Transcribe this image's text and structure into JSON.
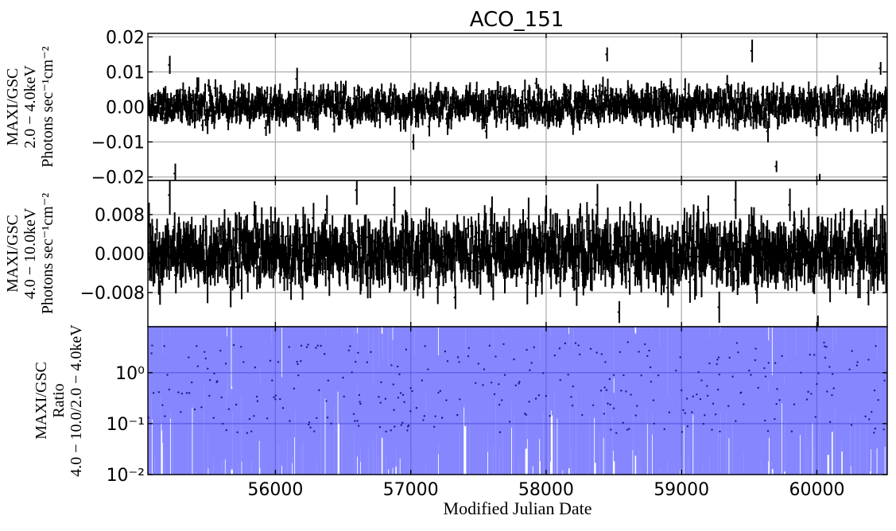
{
  "chart_data": {
    "type": "line",
    "title": "ACO_151",
    "xlabel": "Modified Julian Date",
    "xlim": [
      55058,
      60520
    ],
    "xticks": [
      "56000",
      "57000",
      "58000",
      "59000",
      "60000"
    ],
    "xtick_values": [
      56000,
      57000,
      58000,
      59000,
      60000
    ],
    "grid": true,
    "panels": [
      {
        "id": "soft",
        "ylabel": [
          "MAXI/GSC",
          "2.0 − 4.0keV",
          "Photons sec⁻¹cm⁻²"
        ],
        "ylim": [
          -0.021,
          0.021
        ],
        "scale": "linear",
        "yticks": [
          "0.02",
          "0.01",
          "0.00",
          "−0.01",
          "−0.02"
        ],
        "ytick_values": [
          0.02,
          0.01,
          0.0,
          -0.01,
          -0.02
        ],
        "color": "#000000",
        "series": [
          {
            "x": [
              55070,
              55220,
              55260,
              55600,
              55930,
              56160,
              56480,
              56880,
              57020,
              57200,
              57560,
              57880,
              58200,
              58420,
              58450,
              58700,
              58920,
              59180,
              59420,
              59520,
              59640,
              59700,
              59820,
              60000,
              60020,
              60150,
              60300,
              60470,
              60510
            ],
            "y": [
              0.0,
              0.012,
              -0.019,
              0.004,
              -0.006,
              0.008,
              -0.003,
              0.005,
              -0.01,
              0.004,
              -0.007,
              0.003,
              -0.005,
              0.006,
              0.015,
              -0.004,
              0.006,
              -0.004,
              0.004,
              0.016,
              -0.007,
              -0.017,
              0.004,
              -0.006,
              -0.021,
              0.006,
              -0.004,
              0.011,
              0.002
            ]
          }
        ]
      },
      {
        "id": "hard",
        "ylabel": [
          "MAXI/GSC",
          "4.0 − 10.0keV",
          "Photons sec⁻¹cm⁻²"
        ],
        "ylim": [
          -0.015,
          0.015
        ],
        "scale": "linear",
        "yticks": [
          "0.008",
          "0.000",
          "−0.008"
        ],
        "ytick_values": [
          0.008,
          0.0,
          -0.008
        ],
        "color": "#000000",
        "series": [
          {
            "x": [
              55060,
              55150,
              55220,
              55500,
              55900,
              56200,
              56380,
              56600,
              56700,
              56880,
              57200,
              57330,
              57600,
              57860,
              58000,
              58200,
              58380,
              58540,
              58620,
              58900,
              59200,
              59280,
              59400,
              59560,
              59800,
              59980,
              60010,
              60200,
              60380,
              60440,
              60510
            ],
            "y": [
              0.002,
              -0.008,
              0.012,
              -0.006,
              0.005,
              -0.007,
              0.009,
              0.013,
              -0.005,
              0.01,
              -0.007,
              -0.009,
              0.008,
              -0.006,
              0.009,
              -0.005,
              0.01,
              -0.012,
              0.008,
              -0.007,
              0.009,
              -0.011,
              0.011,
              -0.008,
              0.01,
              -0.006,
              -0.015,
              0.007,
              -0.008,
              0.006,
              -0.004
            ]
          }
        ]
      },
      {
        "id": "ratio",
        "ylabel": [
          "MAXI/GSC",
          "Ratio",
          "4.0 − 10.0/2.0 − 4.0keV"
        ],
        "ylim": [
          0.01,
          8
        ],
        "scale": "log",
        "yticks": [
          "10⁰",
          "10⁻¹",
          "10⁻²"
        ],
        "ytick_values": [
          1,
          0.1,
          0.01
        ],
        "color": "#3b3bff",
        "series": [
          {
            "x": [
              55100,
              55500,
              56000,
              56500,
              57000,
              57500,
              58000,
              58500,
              59000,
              59500,
              60000,
              60500
            ],
            "y": [
              0.4,
              1.2,
              0.3,
              0.8,
              0.5,
              1.5,
              0.35,
              0.9,
              0.45,
              1.1,
              0.6,
              0.7
            ]
          }
        ]
      }
    ]
  }
}
